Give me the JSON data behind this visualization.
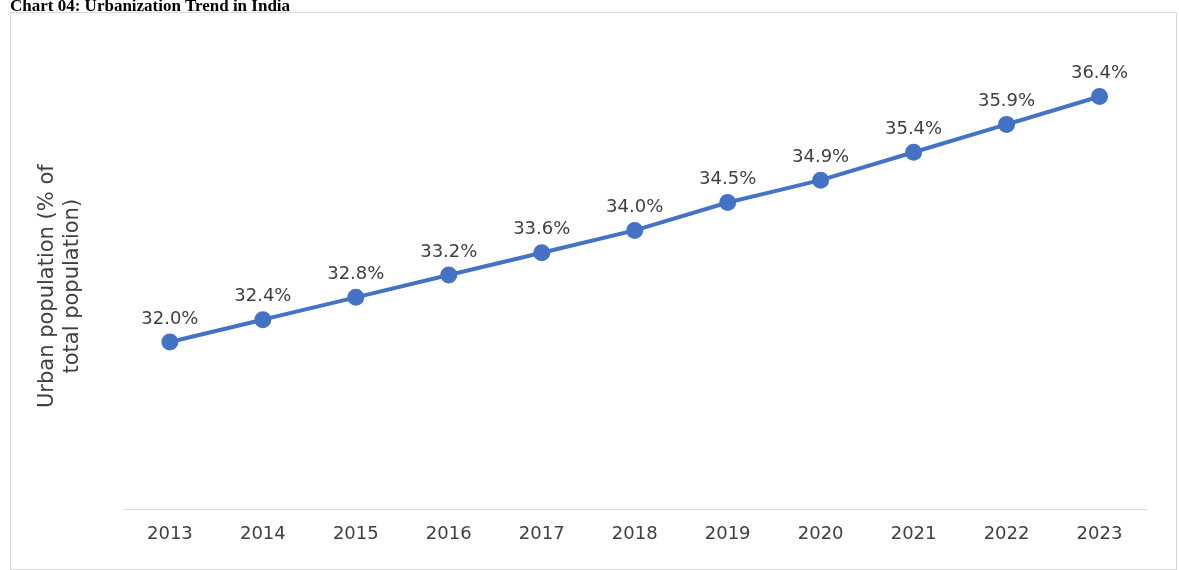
{
  "chart_data": {
    "type": "line",
    "title": "Chart 04: Urbanization Trend in India",
    "ylabel": "Urban population (% of total population)",
    "categories": [
      "2013",
      "2014",
      "2015",
      "2016",
      "2017",
      "2018",
      "2019",
      "2020",
      "2021",
      "2022",
      "2023"
    ],
    "series": [
      {
        "color": "#4472c4",
        "values": [
          32.0,
          32.4,
          32.8,
          33.2,
          33.6,
          34.0,
          34.5,
          34.9,
          35.4,
          35.9,
          36.4
        ],
        "value_labels": [
          "32.0%",
          "32.4%",
          "32.8%",
          "33.2%",
          "33.6%",
          "34.0%",
          "34.5%",
          "34.9%",
          "35.4%",
          "35.9%",
          "36.4%"
        ]
      }
    ],
    "tick_labels": "x",
    "grid": false,
    "legend": false,
    "marker": "circle",
    "line_style": "solid"
  }
}
